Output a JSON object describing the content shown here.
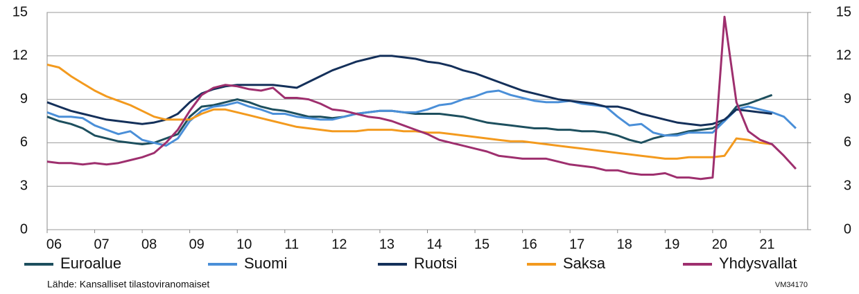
{
  "chart_data": {
    "type": "line",
    "x": [
      6,
      6.25,
      6.5,
      6.75,
      7,
      7.25,
      7.5,
      7.75,
      8,
      8.25,
      8.5,
      8.75,
      9,
      9.25,
      9.5,
      9.75,
      10,
      10.25,
      10.5,
      10.75,
      11,
      11.25,
      11.5,
      11.75,
      12,
      12.25,
      12.5,
      12.75,
      13,
      13.25,
      13.5,
      13.75,
      14,
      14.25,
      14.5,
      14.75,
      15,
      15.25,
      15.5,
      15.75,
      16,
      16.25,
      16.5,
      16.75,
      17,
      17.25,
      17.5,
      17.75,
      18,
      18.25,
      18.5,
      18.75,
      19,
      19.25,
      19.5,
      19.75,
      20,
      20.25,
      20.5,
      20.75,
      21,
      21.25,
      21.5,
      21.75
    ],
    "series": [
      {
        "name": "Euroalue",
        "color": "#1d4f5e",
        "values": [
          7.8,
          7.5,
          7.3,
          7.0,
          6.5,
          6.3,
          6.1,
          6.0,
          5.9,
          6.0,
          6.3,
          6.6,
          7.8,
          8.5,
          8.6,
          8.8,
          9.0,
          8.8,
          8.5,
          8.3,
          8.2,
          8.0,
          7.8,
          7.8,
          7.7,
          7.8,
          8.0,
          8.1,
          8.2,
          8.2,
          8.1,
          8.0,
          8.0,
          8.0,
          7.9,
          7.8,
          7.6,
          7.4,
          7.3,
          7.2,
          7.1,
          7.0,
          7.0,
          6.9,
          6.9,
          6.8,
          6.8,
          6.7,
          6.5,
          6.2,
          6.0,
          6.3,
          6.5,
          6.6,
          6.8,
          6.9,
          7.0,
          7.5,
          8.5,
          8.7,
          9.0,
          9.3,
          null,
          null
        ]
      },
      {
        "name": "Suomi",
        "color": "#4a8fd8",
        "values": [
          8.1,
          7.8,
          7.8,
          7.7,
          7.2,
          6.9,
          6.6,
          6.8,
          6.2,
          6.0,
          5.8,
          6.3,
          7.5,
          8.2,
          8.5,
          8.6,
          8.8,
          8.5,
          8.3,
          8.0,
          8.0,
          7.8,
          7.7,
          7.6,
          7.6,
          7.8,
          8.0,
          8.1,
          8.2,
          8.2,
          8.1,
          8.1,
          8.3,
          8.6,
          8.7,
          9.0,
          9.2,
          9.5,
          9.6,
          9.3,
          9.1,
          8.9,
          8.8,
          8.8,
          8.9,
          8.7,
          8.6,
          8.5,
          7.8,
          7.2,
          7.3,
          6.7,
          6.5,
          6.5,
          6.7,
          6.7,
          6.7,
          7.5,
          8.3,
          8.5,
          8.3,
          8.1,
          7.8,
          7.0
        ]
      },
      {
        "name": "Ruotsi",
        "color": "#14305a",
        "values": [
          8.8,
          8.5,
          8.2,
          8.0,
          7.8,
          7.6,
          7.5,
          7.4,
          7.3,
          7.4,
          7.6,
          8.0,
          8.8,
          9.4,
          9.7,
          9.9,
          10.0,
          10.0,
          10.0,
          10.0,
          9.9,
          9.8,
          10.2,
          10.6,
          11.0,
          11.3,
          11.6,
          11.8,
          12.0,
          12.0,
          11.9,
          11.8,
          11.6,
          11.5,
          11.3,
          11.0,
          10.8,
          10.5,
          10.2,
          9.9,
          9.6,
          9.4,
          9.2,
          9.0,
          8.9,
          8.8,
          8.7,
          8.5,
          8.5,
          8.3,
          8.0,
          7.8,
          7.6,
          7.4,
          7.3,
          7.2,
          7.3,
          7.6,
          8.3,
          8.2,
          8.1,
          8.0,
          null,
          null
        ]
      },
      {
        "name": "Saksa",
        "color": "#f39a1e",
        "values": [
          11.4,
          11.2,
          10.6,
          10.1,
          9.6,
          9.2,
          8.9,
          8.6,
          8.2,
          7.8,
          7.6,
          7.6,
          7.6,
          8.0,
          8.3,
          8.3,
          8.1,
          7.9,
          7.7,
          7.5,
          7.3,
          7.1,
          7.0,
          6.9,
          6.8,
          6.8,
          6.8,
          6.9,
          6.9,
          6.9,
          6.8,
          6.8,
          6.7,
          6.7,
          6.6,
          6.5,
          6.4,
          6.3,
          6.2,
          6.1,
          6.1,
          6.0,
          5.9,
          5.8,
          5.7,
          5.6,
          5.5,
          5.4,
          5.3,
          5.2,
          5.1,
          5.0,
          4.9,
          4.9,
          5.0,
          5.0,
          5.0,
          5.1,
          6.3,
          6.2,
          6.0,
          5.9,
          null,
          null
        ]
      },
      {
        "name": "Yhdysvallat",
        "color": "#9e2f6e",
        "values": [
          4.7,
          4.6,
          4.6,
          4.5,
          4.6,
          4.5,
          4.6,
          4.8,
          5.0,
          5.3,
          6.0,
          6.9,
          8.2,
          9.3,
          9.8,
          10.0,
          9.9,
          9.7,
          9.6,
          9.8,
          9.1,
          9.1,
          9.0,
          8.7,
          8.3,
          8.2,
          8.0,
          7.8,
          7.7,
          7.5,
          7.2,
          6.9,
          6.6,
          6.2,
          6.0,
          5.8,
          5.6,
          5.4,
          5.1,
          5.0,
          4.9,
          4.9,
          4.9,
          4.7,
          4.5,
          4.4,
          4.3,
          4.1,
          4.1,
          3.9,
          3.8,
          3.8,
          3.9,
          3.6,
          3.6,
          3.5,
          3.6,
          14.7,
          8.8,
          6.8,
          6.2,
          5.9,
          5.1,
          4.2
        ]
      }
    ],
    "xlim": [
      6,
      22
    ],
    "xticks": [
      {
        "value": 6,
        "label": "06"
      },
      {
        "value": 7,
        "label": "07"
      },
      {
        "value": 8,
        "label": "08"
      },
      {
        "value": 9,
        "label": "09"
      },
      {
        "value": 10,
        "label": "10"
      },
      {
        "value": 11,
        "label": "11"
      },
      {
        "value": 12,
        "label": "12"
      },
      {
        "value": 13,
        "label": "13"
      },
      {
        "value": 14,
        "label": "14"
      },
      {
        "value": 15,
        "label": "15"
      },
      {
        "value": 16,
        "label": "16"
      },
      {
        "value": 17,
        "label": "17"
      },
      {
        "value": 18,
        "label": "18"
      },
      {
        "value": 19,
        "label": "19"
      },
      {
        "value": 20,
        "label": "20"
      },
      {
        "value": 21,
        "label": "21"
      }
    ],
    "ylim": [
      0,
      15
    ],
    "yticks": [
      0,
      3,
      6,
      9,
      12,
      15
    ],
    "y2lim": [
      0,
      15
    ],
    "y2ticks": [
      0,
      3,
      6,
      9,
      12,
      15
    ],
    "grid": true,
    "legend": "bottom",
    "source": "Lähde: Kansalliset tilastoviranomaiset",
    "code": "VM34170"
  }
}
